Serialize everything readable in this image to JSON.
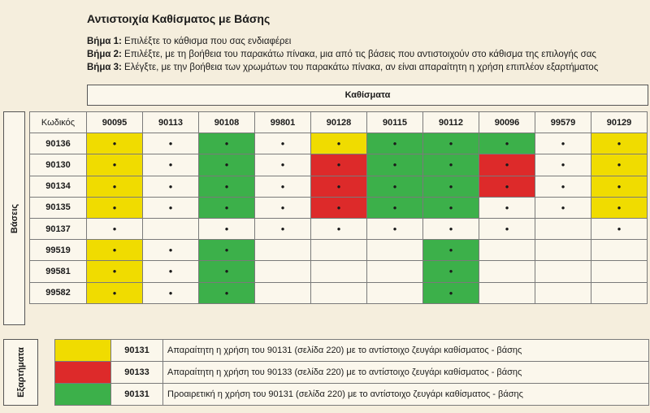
{
  "title": "Αντιστοιχία Καθίσματος με Βάσης",
  "steps": [
    {
      "label": "Βήμα 1:",
      "text": " Επιλέξτε το κάθισμα που σας ενδιαφέρει"
    },
    {
      "label": "Βήμα 2:",
      "text": " Επιλέξτε, με τη βοήθεια του παρακάτω πίνακα, μια από τις βάσεις που αντιστοιχούν στο κάθισμα της επιλογής σας"
    },
    {
      "label": "Βήμα 3:",
      "text": " Ελέγξτε, με την βοήθεια των χρωμάτων του παρακάτω πίνακα, αν είναι απαραίτητη η χρήση επιπλέον εξαρτήματος"
    }
  ],
  "seats_label": "Καθίσματα",
  "bases_label": "Βάσεις",
  "accessories_label": "Εξαρτήματα",
  "code_header": "Κωδικός",
  "seats": [
    "90095",
    "90113",
    "90108",
    "99801",
    "90128",
    "90115",
    "90112",
    "90096",
    "99579",
    "90129"
  ],
  "rows": [
    {
      "base": "90136",
      "cells": [
        "y",
        "w",
        "g",
        "w",
        "y",
        "g",
        "g",
        "g",
        "w",
        "y"
      ]
    },
    {
      "base": "90130",
      "cells": [
        "y",
        "w",
        "g",
        "w",
        "r",
        "g",
        "g",
        "r",
        "w",
        "y"
      ]
    },
    {
      "base": "90134",
      "cells": [
        "y",
        "w",
        "g",
        "w",
        "r",
        "g",
        "g",
        "r",
        "w",
        "y"
      ]
    },
    {
      "base": "90135",
      "cells": [
        "y",
        "w",
        "g",
        "w",
        "r",
        "g",
        "g",
        "w",
        "w",
        "y"
      ]
    },
    {
      "base": "90137",
      "cells": [
        "w",
        "e",
        "w",
        "w",
        "w",
        "w",
        "w",
        "w",
        "e",
        "w"
      ]
    },
    {
      "base": "99519",
      "cells": [
        "y",
        "w",
        "g",
        "e",
        "e",
        "e",
        "g",
        "e",
        "e",
        "e"
      ]
    },
    {
      "base": "99581",
      "cells": [
        "y",
        "w",
        "g",
        "e",
        "e",
        "e",
        "g",
        "e",
        "e",
        "e"
      ]
    },
    {
      "base": "99582",
      "cells": [
        "y",
        "w",
        "g",
        "e",
        "e",
        "e",
        "g",
        "e",
        "e",
        "e"
      ]
    }
  ],
  "dot": "•",
  "colors": {
    "yellow": "#f0dc00",
    "red": "#dd2a2a",
    "green": "#3cb04a"
  },
  "legend": [
    {
      "color": "y",
      "code": "90131",
      "text": "Απαραίτητη η χρήση του 90131 (σελίδα 220) με το αντίστοιχο ζευγάρι καθίσματος - βάσης"
    },
    {
      "color": "r",
      "code": "90133",
      "text": "Απαραίτητη η χρήση του 90133 (σελίδα 220) με το αντίστοιχο ζευγάρι καθίσματος - βάσης"
    },
    {
      "color": "g",
      "code": "90131",
      "text": "Προαιρετική η χρήση του 90131 (σελίδα 220) με το αντίστοιχο ζευγάρι καθίσματος - βάσης"
    }
  ]
}
